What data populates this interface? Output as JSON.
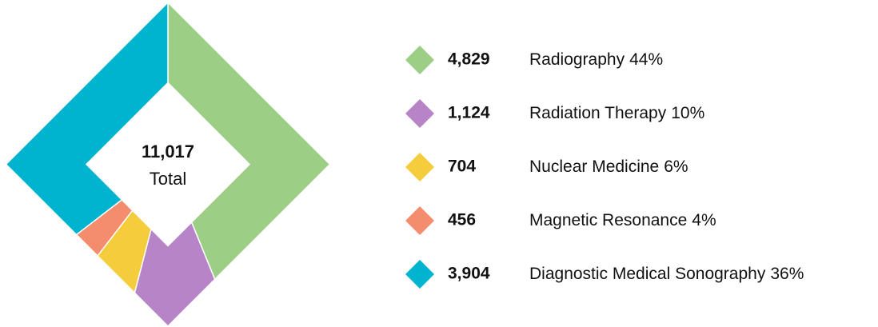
{
  "chart_data": {
    "type": "donut",
    "categories": [
      "Radiography",
      "Radiation Therapy",
      "Nuclear Medicine",
      "Magnetic Resonance",
      "Diagnostic Medical Sonography"
    ],
    "values": [
      4829,
      1124,
      704,
      456,
      3904
    ],
    "value_labels": [
      "4,829",
      "1,124",
      "704",
      "456",
      "3,904"
    ],
    "percentages": [
      44,
      10,
      6,
      4,
      36
    ],
    "percentage_labels": [
      "44%",
      "10%",
      "6%",
      "4%",
      "36%"
    ],
    "colors": [
      "#9ccf85",
      "#b884c8",
      "#f5cc3b",
      "#f48c6e",
      "#00b4d0"
    ],
    "total": 11017,
    "total_label": "11,017",
    "total_caption": "Total"
  }
}
